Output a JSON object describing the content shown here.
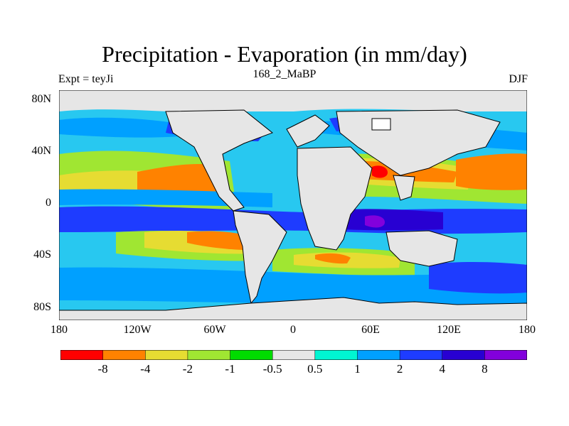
{
  "title": "Precipitation - Evaporation (in mm/day)",
  "subtitle_center": "168_2_MaBP",
  "subtitle_left": "Expt = teyJi",
  "subtitle_right": "DJF",
  "lat_labels": [
    "80N",
    "40N",
    "0",
    "40S",
    "80S"
  ],
  "lon_labels": [
    "180",
    "120W",
    "60W",
    "0",
    "60E",
    "120E",
    "180"
  ],
  "colorbar": {
    "labels": [
      "-8",
      "-4",
      "-2",
      "-1",
      "-0.5",
      "0.5",
      "1",
      "2",
      "4",
      "8"
    ],
    "colors": [
      "#ff0000",
      "#ff8200",
      "#e6dc32",
      "#a0e632",
      "#00dc00",
      "#e6e6e6",
      "#00f5d2",
      "#00a0ff",
      "#1e3cff",
      "#2800d2",
      "#8200dc"
    ]
  },
  "palette": {
    "ocean_base": "#28c8f0",
    "land_neutral": "#e6e6e6",
    "coastline": "#000000"
  }
}
